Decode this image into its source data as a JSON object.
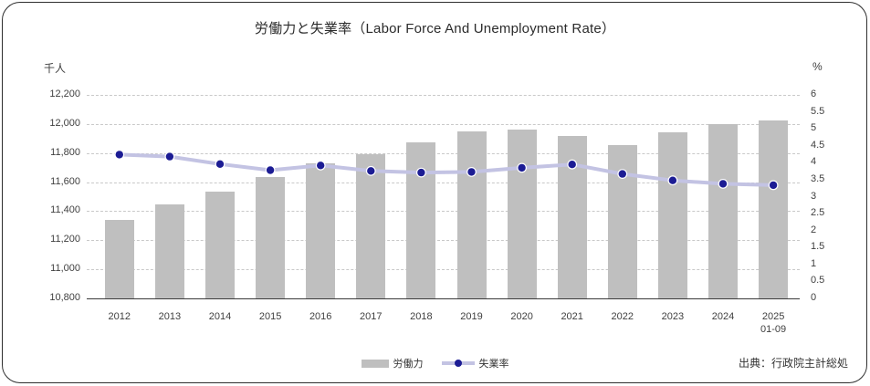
{
  "chart_data": {
    "type": "combo",
    "title": "労働力と失業率（Labor Force And Unemployment Rate）",
    "categories": [
      "2012",
      "2013",
      "2014",
      "2015",
      "2016",
      "2017",
      "2018",
      "2019",
      "2020",
      "2021",
      "2022",
      "2023",
      "2024",
      "2025"
    ],
    "category_sublabels": [
      "",
      "",
      "",
      "",
      "",
      "",
      "",
      "",
      "",
      "",
      "",
      "",
      "",
      "01-09"
    ],
    "series": [
      {
        "name": "労働力",
        "type": "bar",
        "axis": "left",
        "values": [
          11341,
          11445,
          11535,
          11638,
          11727,
          11795,
          11874,
          11946,
          11964,
          11919,
          11853,
          11945,
          12000,
          12025
        ]
      },
      {
        "name": "失業率",
        "type": "line",
        "axis": "right",
        "values": [
          4.24,
          4.18,
          3.96,
          3.78,
          3.92,
          3.76,
          3.71,
          3.73,
          3.85,
          3.95,
          3.67,
          3.48,
          3.38,
          3.34
        ]
      }
    ],
    "left_axis": {
      "unit": "千人",
      "min": 10800,
      "max": 12200,
      "step": 200,
      "tick_values": [
        10800,
        11000,
        11200,
        11400,
        11600,
        11800,
        12000,
        12200
      ],
      "tick_labels": [
        "10,800",
        "11,000",
        "11,200",
        "11,400",
        "11,600",
        "11,800",
        "12,000",
        "12,200"
      ]
    },
    "right_axis": {
      "unit": "%",
      "min": 0,
      "max": 6,
      "step": 0.5,
      "tick_values": [
        0,
        0.5,
        1,
        1.5,
        2,
        2.5,
        3,
        3.5,
        4,
        4.5,
        5,
        5.5,
        6
      ],
      "tick_labels": [
        "0",
        "0.5",
        "1",
        "1.5",
        "2",
        "2.5",
        "3",
        "3.5",
        "4",
        "4.5",
        "5",
        "5.5",
        "6"
      ]
    },
    "legend": [
      "労働力",
      "失業率"
    ],
    "legend_position": "bottom-center",
    "grid": "horizontal-dashed",
    "source": "出典：行政院主計総処",
    "colors": {
      "bar": "#bfbfbf",
      "line": "#c3c3e3",
      "marker": "#1c1c94",
      "marker_ring": "#ffffff"
    }
  }
}
